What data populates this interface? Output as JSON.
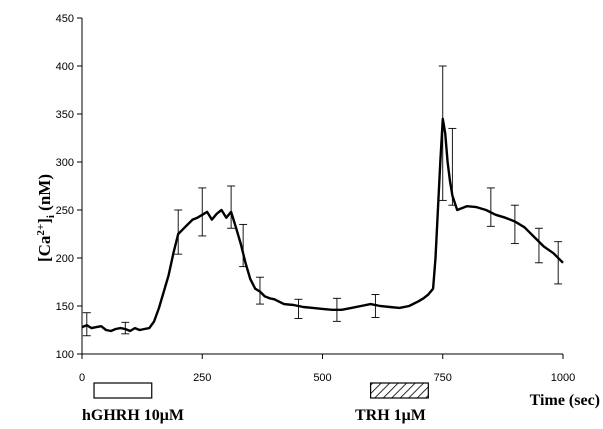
{
  "chart_data": {
    "type": "line",
    "xlabel": "Time (sec)",
    "ylabel_main": "[Ca",
    "ylabel_sup": "2+",
    "ylabel_close": "]",
    "ylabel_sub": "i",
    "ylabel_unit": " (nM)",
    "xlim": [
      0,
      1000
    ],
    "ylim": [
      100,
      450
    ],
    "x_ticks": [
      0,
      250,
      500,
      750,
      1000
    ],
    "y_ticks": [
      100,
      150,
      200,
      250,
      300,
      350,
      400,
      450
    ],
    "grid": false,
    "legend": "none",
    "series": [
      {
        "color": "#000000",
        "x": [
          0,
          10,
          20,
          30,
          40,
          50,
          60,
          70,
          80,
          90,
          100,
          110,
          120,
          130,
          140,
          150,
          160,
          170,
          180,
          190,
          200,
          210,
          220,
          230,
          240,
          250,
          260,
          270,
          280,
          290,
          300,
          310,
          320,
          330,
          340,
          350,
          360,
          370,
          380,
          390,
          400,
          420,
          440,
          460,
          480,
          500,
          520,
          540,
          560,
          580,
          600,
          620,
          640,
          660,
          680,
          700,
          710,
          720,
          730,
          735,
          740,
          745,
          750,
          755,
          760,
          765,
          770,
          780,
          790,
          800,
          820,
          840,
          860,
          880,
          900,
          920,
          940,
          960,
          980,
          1000
        ],
        "y": [
          128,
          130,
          127,
          128,
          129,
          125,
          124,
          126,
          127,
          126,
          124,
          127,
          125,
          126,
          127,
          134,
          148,
          165,
          182,
          205,
          225,
          230,
          235,
          240,
          242,
          245,
          248,
          240,
          246,
          250,
          242,
          248,
          232,
          215,
          195,
          178,
          168,
          165,
          160,
          158,
          157,
          152,
          151,
          149,
          148,
          147,
          146,
          146,
          148,
          150,
          152,
          150,
          149,
          148,
          150,
          155,
          158,
          162,
          168,
          200,
          250,
          300,
          345,
          330,
          300,
          280,
          265,
          250,
          252,
          254,
          253,
          250,
          245,
          242,
          238,
          232,
          222,
          212,
          205,
          195
        ]
      }
    ],
    "error_bars": [
      {
        "x": 10,
        "y": 131,
        "err": 12
      },
      {
        "x": 90,
        "y": 127,
        "err": 6
      },
      {
        "x": 200,
        "y": 227,
        "err": 23
      },
      {
        "x": 250,
        "y": 248,
        "err": 25
      },
      {
        "x": 310,
        "y": 253,
        "err": 22
      },
      {
        "x": 335,
        "y": 213,
        "err": 22
      },
      {
        "x": 370,
        "y": 166,
        "err": 14
      },
      {
        "x": 450,
        "y": 147,
        "err": 10
      },
      {
        "x": 530,
        "y": 146,
        "err": 12
      },
      {
        "x": 610,
        "y": 150,
        "err": 12
      },
      {
        "x": 750,
        "y": 330,
        "err": 70
      },
      {
        "x": 770,
        "y": 295,
        "err": 40
      },
      {
        "x": 850,
        "y": 253,
        "err": 20
      },
      {
        "x": 900,
        "y": 235,
        "err": 20
      },
      {
        "x": 950,
        "y": 213,
        "err": 18
      },
      {
        "x": 990,
        "y": 195,
        "err": 22
      }
    ],
    "stimuli": [
      {
        "label": "hGHRH 10μM",
        "start": 25,
        "end": 145,
        "style": "open"
      },
      {
        "label": "TRH 1μM",
        "start": 600,
        "end": 720,
        "style": "hatched"
      }
    ]
  }
}
